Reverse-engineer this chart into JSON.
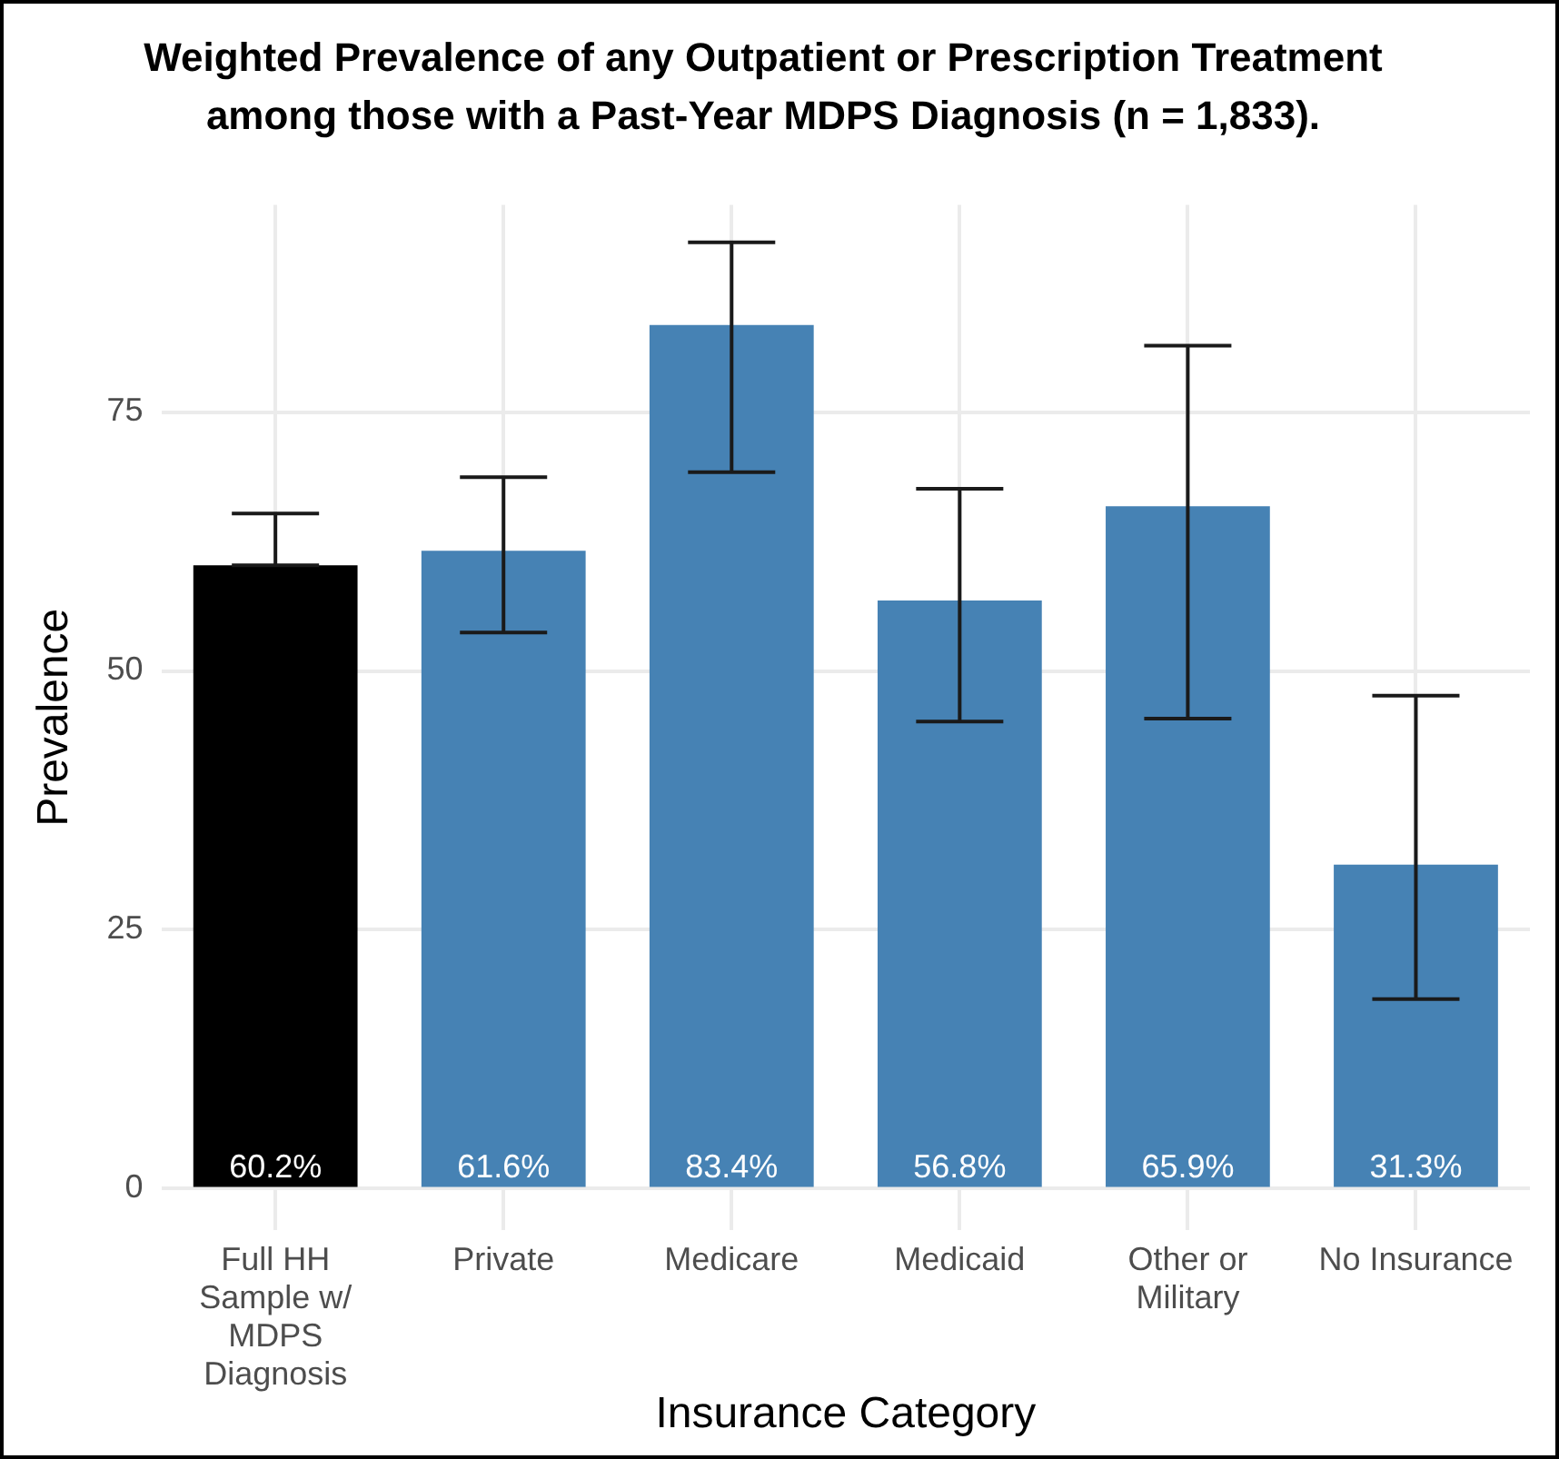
{
  "chart_data": {
    "type": "bar",
    "title": "Weighted Prevalence of any Outpatient or Prescription Treatment among those with a Past-Year MDPS Diagnosis (n = 1,833).",
    "xlabel": "Insurance Category",
    "ylabel": "Prevalence",
    "categories": [
      "Full HH Sample w/ MDPS Diagnosis",
      "Private",
      "Medicare",
      "Medicaid",
      "Other or Military",
      "No Insurance"
    ],
    "values": [
      60.2,
      61.6,
      83.4,
      56.8,
      65.9,
      31.3
    ],
    "colors": [
      "#000000",
      "#4682b4",
      "#4682b4",
      "#4682b4",
      "#4682b4",
      "#4682b4"
    ],
    "errors": [
      [
        60.2,
        65.2
      ],
      [
        53.7,
        68.7
      ],
      [
        69.2,
        91.4
      ],
      [
        45.1,
        67.6
      ],
      [
        45.4,
        81.4
      ],
      [
        18.3,
        47.6
      ]
    ],
    "value_labels": [
      "60.2%",
      "61.6%",
      "83.4%",
      "56.8%",
      "65.9%",
      "31.3%"
    ],
    "ylim": [
      -4,
      95
    ],
    "yticks": [
      0,
      25,
      50,
      75
    ],
    "grid": true
  }
}
